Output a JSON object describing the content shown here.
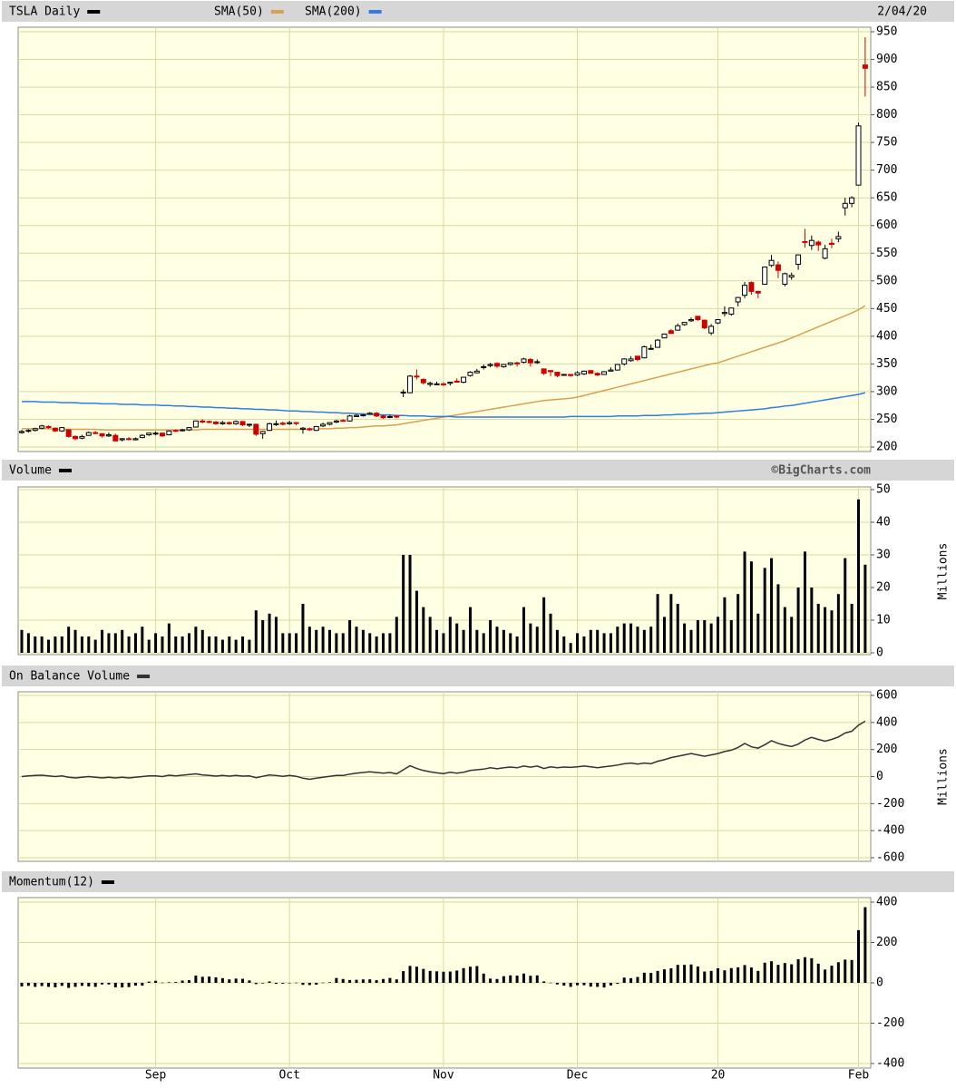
{
  "chart_data": [
    {
      "type": "candlestick",
      "name": "TSLA Daily",
      "date_label": "2/04/20",
      "legend_color": "#000000",
      "up_color": "#ffffff",
      "down_color": "#cc0000",
      "open": [
        226,
        229,
        230,
        234,
        237,
        234,
        229,
        231,
        219,
        216,
        221,
        226,
        224,
        220,
        221,
        213,
        215,
        213,
        217,
        222,
        224,
        225,
        222,
        230,
        230,
        231,
        236,
        247,
        246,
        245,
        242,
        244,
        242,
        246,
        240,
        241,
        224,
        230,
        242,
        243,
        242,
        244,
        232,
        233,
        230,
        238,
        241,
        245,
        248,
        247,
        255,
        257,
        259,
        261,
        256,
        254,
        256,
        298,
        298,
        328,
        322,
        313,
        314,
        314,
        315,
        319,
        317,
        329,
        334,
        344,
        347,
        351,
        345,
        349,
        352,
        353,
        358,
        353,
        341,
        338,
        335,
        330,
        331,
        330,
        332,
        338,
        333,
        331,
        337,
        339,
        350,
        356,
        364,
        361,
        378,
        380,
        397,
        410,
        411,
        421,
        428,
        436,
        429,
        406,
        424,
        441,
        440,
        462,
        474,
        497,
        481,
        494,
        528,
        529,
        494,
        507,
        530,
        571,
        564,
        570,
        541,
        568,
        576,
        632,
        640,
        673,
        890
      ],
      "high": [
        231,
        232,
        235,
        240,
        239,
        235,
        236,
        232,
        221,
        222,
        228,
        229,
        225,
        226,
        224,
        216,
        218,
        217,
        223,
        226,
        228,
        226,
        230,
        232,
        233,
        236,
        248,
        250,
        248,
        247,
        247,
        246,
        248,
        247,
        242,
        242,
        229,
        244,
        248,
        246,
        247,
        245,
        236,
        235,
        238,
        244,
        244,
        249,
        250,
        258,
        260,
        259,
        263,
        263,
        258,
        258,
        258,
        304,
        330,
        340,
        324,
        318,
        318,
        317,
        318,
        324,
        326,
        337,
        341,
        349,
        352,
        353,
        350,
        353,
        354,
        361,
        361,
        358,
        342,
        339,
        336,
        332,
        331,
        337,
        338,
        338,
        335,
        337,
        344,
        350,
        360,
        364,
        364,
        383,
        385,
        395,
        405,
        413,
        423,
        425,
        434,
        436,
        430,
        422,
        430,
        454,
        451,
        471,
        498,
        499,
        482,
        526,
        547,
        535,
        515,
        515,
        548,
        594,
        582,
        573,
        565,
        576,
        589,
        650,
        653,
        786,
        940
      ],
      "low": [
        224,
        226,
        228,
        232,
        233,
        227,
        227,
        217,
        212,
        214,
        220,
        223,
        217,
        218,
        210,
        210,
        212,
        212,
        216,
        220,
        221,
        218,
        221,
        227,
        228,
        229,
        235,
        243,
        243,
        240,
        240,
        240,
        240,
        238,
        236,
        220,
        215,
        229,
        238,
        239,
        240,
        239,
        224,
        229,
        229,
        236,
        239,
        243,
        246,
        246,
        254,
        255,
        258,
        254,
        251,
        252,
        252,
        290,
        297,
        322,
        313,
        309,
        312,
        310,
        311,
        316,
        315,
        327,
        333,
        340,
        344,
        343,
        343,
        347,
        345,
        351,
        345,
        350,
        330,
        328,
        326,
        329,
        327,
        328,
        330,
        332,
        328,
        330,
        337,
        338,
        347,
        354,
        355,
        360,
        376,
        380,
        397,
        404,
        410,
        419,
        426,
        428,
        413,
        402,
        422,
        436,
        437,
        454,
        469,
        475,
        469,
        493,
        525,
        505,
        490,
        502,
        520,
        560,
        556,
        554,
        539,
        559,
        570,
        618,
        633,
        673,
        833
      ],
      "close": [
        228,
        230,
        233,
        238,
        235,
        229,
        235,
        219,
        215,
        219,
        226,
        225,
        220,
        222,
        211,
        215,
        214,
        215,
        221,
        225,
        225,
        220,
        229,
        229,
        231,
        235,
        247,
        245,
        245,
        242,
        244,
        242,
        246,
        240,
        241,
        223,
        228,
        242,
        242,
        241,
        244,
        243,
        234,
        231,
        237,
        241,
        244,
        247,
        247,
        256,
        257,
        258,
        261,
        256,
        253,
        255,
        254,
        299,
        328,
        327,
        316,
        315,
        314,
        313,
        317,
        317,
        326,
        335,
        337,
        345,
        349,
        346,
        349,
        352,
        350,
        359,
        352,
        354,
        333,
        336,
        329,
        331,
        329,
        334,
        337,
        333,
        330,
        336,
        339,
        349,
        359,
        359,
        358,
        381,
        378,
        393,
        404,
        405,
        419,
        425,
        430,
        430,
        415,
        418,
        430,
        443,
        451,
        470,
        492,
        481,
        478,
        525,
        537,
        519,
        513,
        510,
        547,
        570,
        573,
        565,
        558,
        566,
        580,
        640,
        650,
        780,
        884
      ],
      "overlays": [
        {
          "name": "SMA(50)",
          "color": "#d9a04f",
          "values": [
            233,
            233,
            233,
            233,
            233,
            232,
            232,
            232,
            232,
            232,
            232,
            232,
            231,
            231,
            231,
            231,
            231,
            231,
            231,
            231,
            231,
            231,
            231,
            231,
            231,
            231,
            231,
            232,
            232,
            232,
            232,
            232,
            232,
            232,
            232,
            232,
            232,
            232,
            232,
            232,
            232,
            232,
            232,
            232,
            233,
            233,
            233,
            234,
            234,
            235,
            235,
            236,
            237,
            238,
            238,
            239,
            240,
            242,
            244,
            246,
            248,
            250,
            252,
            254,
            256,
            258,
            260,
            262,
            264,
            266,
            268,
            270,
            272,
            274,
            276,
            278,
            280,
            282,
            284,
            285,
            286,
            287,
            288,
            290,
            293,
            296,
            299,
            302,
            305,
            308,
            311,
            314,
            317,
            320,
            323,
            326,
            329,
            332,
            335,
            338,
            341,
            344,
            347,
            350,
            352,
            356,
            360,
            364,
            368,
            372,
            376,
            380,
            384,
            388,
            392,
            397,
            402,
            407,
            412,
            417,
            422,
            427,
            432,
            437,
            442,
            448,
            455
          ]
        },
        {
          "name": "SMA(200)",
          "color": "#2f7de1",
          "values": [
            282,
            282,
            282,
            281,
            281,
            281,
            280,
            280,
            280,
            279,
            279,
            279,
            278,
            278,
            278,
            277,
            277,
            277,
            276,
            276,
            276,
            275,
            275,
            274,
            274,
            273,
            273,
            272,
            272,
            271,
            271,
            270,
            270,
            269,
            269,
            268,
            268,
            267,
            267,
            266,
            265,
            265,
            264,
            264,
            263,
            263,
            262,
            262,
            261,
            261,
            260,
            260,
            259,
            259,
            258,
            258,
            257,
            257,
            256,
            256,
            256,
            255,
            255,
            255,
            255,
            254,
            254,
            254,
            254,
            254,
            254,
            254,
            254,
            254,
            254,
            254,
            254,
            254,
            254,
            254,
            254,
            254,
            255,
            255,
            255,
            255,
            255,
            255,
            255,
            256,
            256,
            256,
            256,
            257,
            257,
            257,
            258,
            258,
            259,
            259,
            260,
            260,
            261,
            261,
            262,
            263,
            264,
            265,
            266,
            267,
            268,
            269,
            271,
            272,
            274,
            275,
            277,
            279,
            281,
            283,
            285,
            287,
            289,
            291,
            293,
            295,
            298
          ]
        }
      ],
      "ylim": [
        200,
        950
      ],
      "yticks": [
        200,
        250,
        300,
        350,
        400,
        450,
        500,
        550,
        600,
        650,
        700,
        750,
        800,
        850,
        900,
        950
      ],
      "grid": true
    },
    {
      "type": "bar",
      "name": "Volume",
      "source": "©BigCharts.com",
      "ylabel": "Millions",
      "color": "#000000",
      "values": [
        7,
        6,
        5,
        5,
        4,
        5,
        5,
        8,
        7,
        5,
        5,
        4,
        7,
        6,
        6,
        7,
        5,
        6,
        8,
        4,
        6,
        5,
        9,
        5,
        5,
        6,
        8,
        7,
        5,
        5,
        4,
        5,
        4,
        5,
        4,
        13,
        10,
        12,
        11,
        6,
        6,
        6,
        15,
        8,
        7,
        8,
        7,
        6,
        6,
        10,
        8,
        7,
        6,
        5,
        6,
        6,
        11,
        30,
        30,
        19,
        14,
        11,
        7,
        6,
        11,
        9,
        7,
        14,
        7,
        6,
        10,
        8,
        7,
        6,
        5,
        14,
        9,
        8,
        17,
        12,
        7,
        5,
        3,
        6,
        5,
        7,
        7,
        6,
        6,
        8,
        9,
        9,
        8,
        7,
        8,
        18,
        11,
        18,
        15,
        9,
        7,
        10,
        10,
        9,
        11,
        17,
        10,
        18,
        31,
        28,
        12,
        26,
        29,
        21,
        14,
        11,
        20,
        31,
        20,
        15,
        14,
        13,
        18,
        29,
        15,
        47,
        27
      ],
      "ylim": [
        0,
        50
      ],
      "yticks": [
        0,
        10,
        20,
        30,
        40,
        50
      ],
      "grid": true
    },
    {
      "type": "line",
      "name": "On Balance Volume",
      "ylabel": "Millions",
      "color": "#333333",
      "values": [
        0,
        5,
        8,
        10,
        5,
        0,
        5,
        -5,
        -10,
        -5,
        0,
        -5,
        -10,
        -5,
        -10,
        -5,
        -10,
        -5,
        0,
        5,
        5,
        0,
        10,
        5,
        10,
        15,
        20,
        12,
        8,
        3,
        8,
        3,
        8,
        3,
        5,
        -8,
        2,
        12,
        8,
        2,
        8,
        2,
        -12,
        -20,
        -12,
        -5,
        2,
        8,
        8,
        18,
        25,
        30,
        35,
        30,
        25,
        30,
        20,
        50,
        80,
        60,
        45,
        35,
        28,
        22,
        32,
        25,
        32,
        45,
        50,
        55,
        65,
        58,
        65,
        70,
        65,
        78,
        70,
        78,
        60,
        72,
        65,
        70,
        68,
        72,
        78,
        72,
        65,
        72,
        78,
        85,
        95,
        100,
        92,
        100,
        95,
        113,
        125,
        140,
        150,
        160,
        170,
        160,
        150,
        160,
        170,
        185,
        195,
        215,
        245,
        220,
        210,
        235,
        265,
        245,
        232,
        222,
        240,
        270,
        290,
        275,
        262,
        275,
        293,
        322,
        335,
        380,
        410
      ],
      "ylim": [
        -600,
        600
      ],
      "yticks": [
        -600,
        -400,
        -200,
        0,
        200,
        400,
        600
      ],
      "grid": true
    },
    {
      "type": "bar",
      "name": "Momentum(12)",
      "color": "#000000",
      "categories": [
        null,
        null,
        null,
        null,
        null,
        null,
        null,
        null,
        null,
        null,
        null,
        null,
        null,
        null,
        null,
        null,
        null,
        null,
        null,
        null,
        "Sep",
        null,
        null,
        null,
        null,
        null,
        null,
        null,
        null,
        null,
        null,
        null,
        null,
        null,
        null,
        null,
        null,
        null,
        null,
        null,
        "Oct",
        null,
        null,
        null,
        null,
        null,
        null,
        null,
        null,
        null,
        null,
        null,
        null,
        null,
        null,
        null,
        null,
        null,
        null,
        null,
        null,
        null,
        null,
        "Nov",
        null,
        null,
        null,
        null,
        null,
        null,
        null,
        null,
        null,
        null,
        null,
        null,
        null,
        null,
        null,
        null,
        null,
        null,
        null,
        "Dec",
        null,
        null,
        null,
        null,
        null,
        null,
        null,
        null,
        null,
        null,
        null,
        null,
        null,
        null,
        null,
        null,
        null,
        null,
        null,
        null,
        "20",
        null,
        null,
        null,
        null,
        null,
        null,
        null,
        null,
        null,
        null,
        null,
        null,
        null,
        null,
        null,
        null,
        null,
        null,
        null,
        null,
        "Feb",
        null
      ],
      "values": [
        -18,
        -15,
        -20,
        -16,
        -20,
        -22,
        -15,
        -25,
        -20,
        -15,
        -18,
        -20,
        -8,
        -8,
        -22,
        -23,
        -21,
        -14,
        -14,
        6,
        10,
        1,
        3,
        4,
        11,
        13,
        36,
        30,
        31,
        27,
        23,
        17,
        21,
        20,
        12,
        -6,
        -3,
        7,
        -5,
        -4,
        -1,
        1,
        -10,
        -11,
        -9,
        1,
        3,
        24,
        19,
        14,
        15,
        17,
        17,
        13,
        19,
        24,
        17,
        58,
        84,
        80,
        69,
        59,
        57,
        55,
        56,
        61,
        73,
        80,
        83,
        46,
        21,
        19,
        33,
        37,
        36,
        46,
        35,
        37,
        7,
        1,
        -8,
        -14,
        -20,
        -12,
        -12,
        -19,
        -20,
        -23,
        -13,
        -5,
        26,
        23,
        29,
        50,
        49,
        59,
        67,
        72,
        89,
        89,
        91,
        81,
        56,
        59,
        72,
        62,
        73,
        77,
        88,
        76,
        59,
        100,
        107,
        89,
        98,
        92,
        117,
        127,
        122,
        95,
        66,
        85,
        102,
        115,
        113,
        261,
        375
      ],
      "ylim": [
        -400,
        400
      ],
      "yticks": [
        -400,
        -200,
        0,
        200,
        400
      ],
      "grid": true
    }
  ]
}
